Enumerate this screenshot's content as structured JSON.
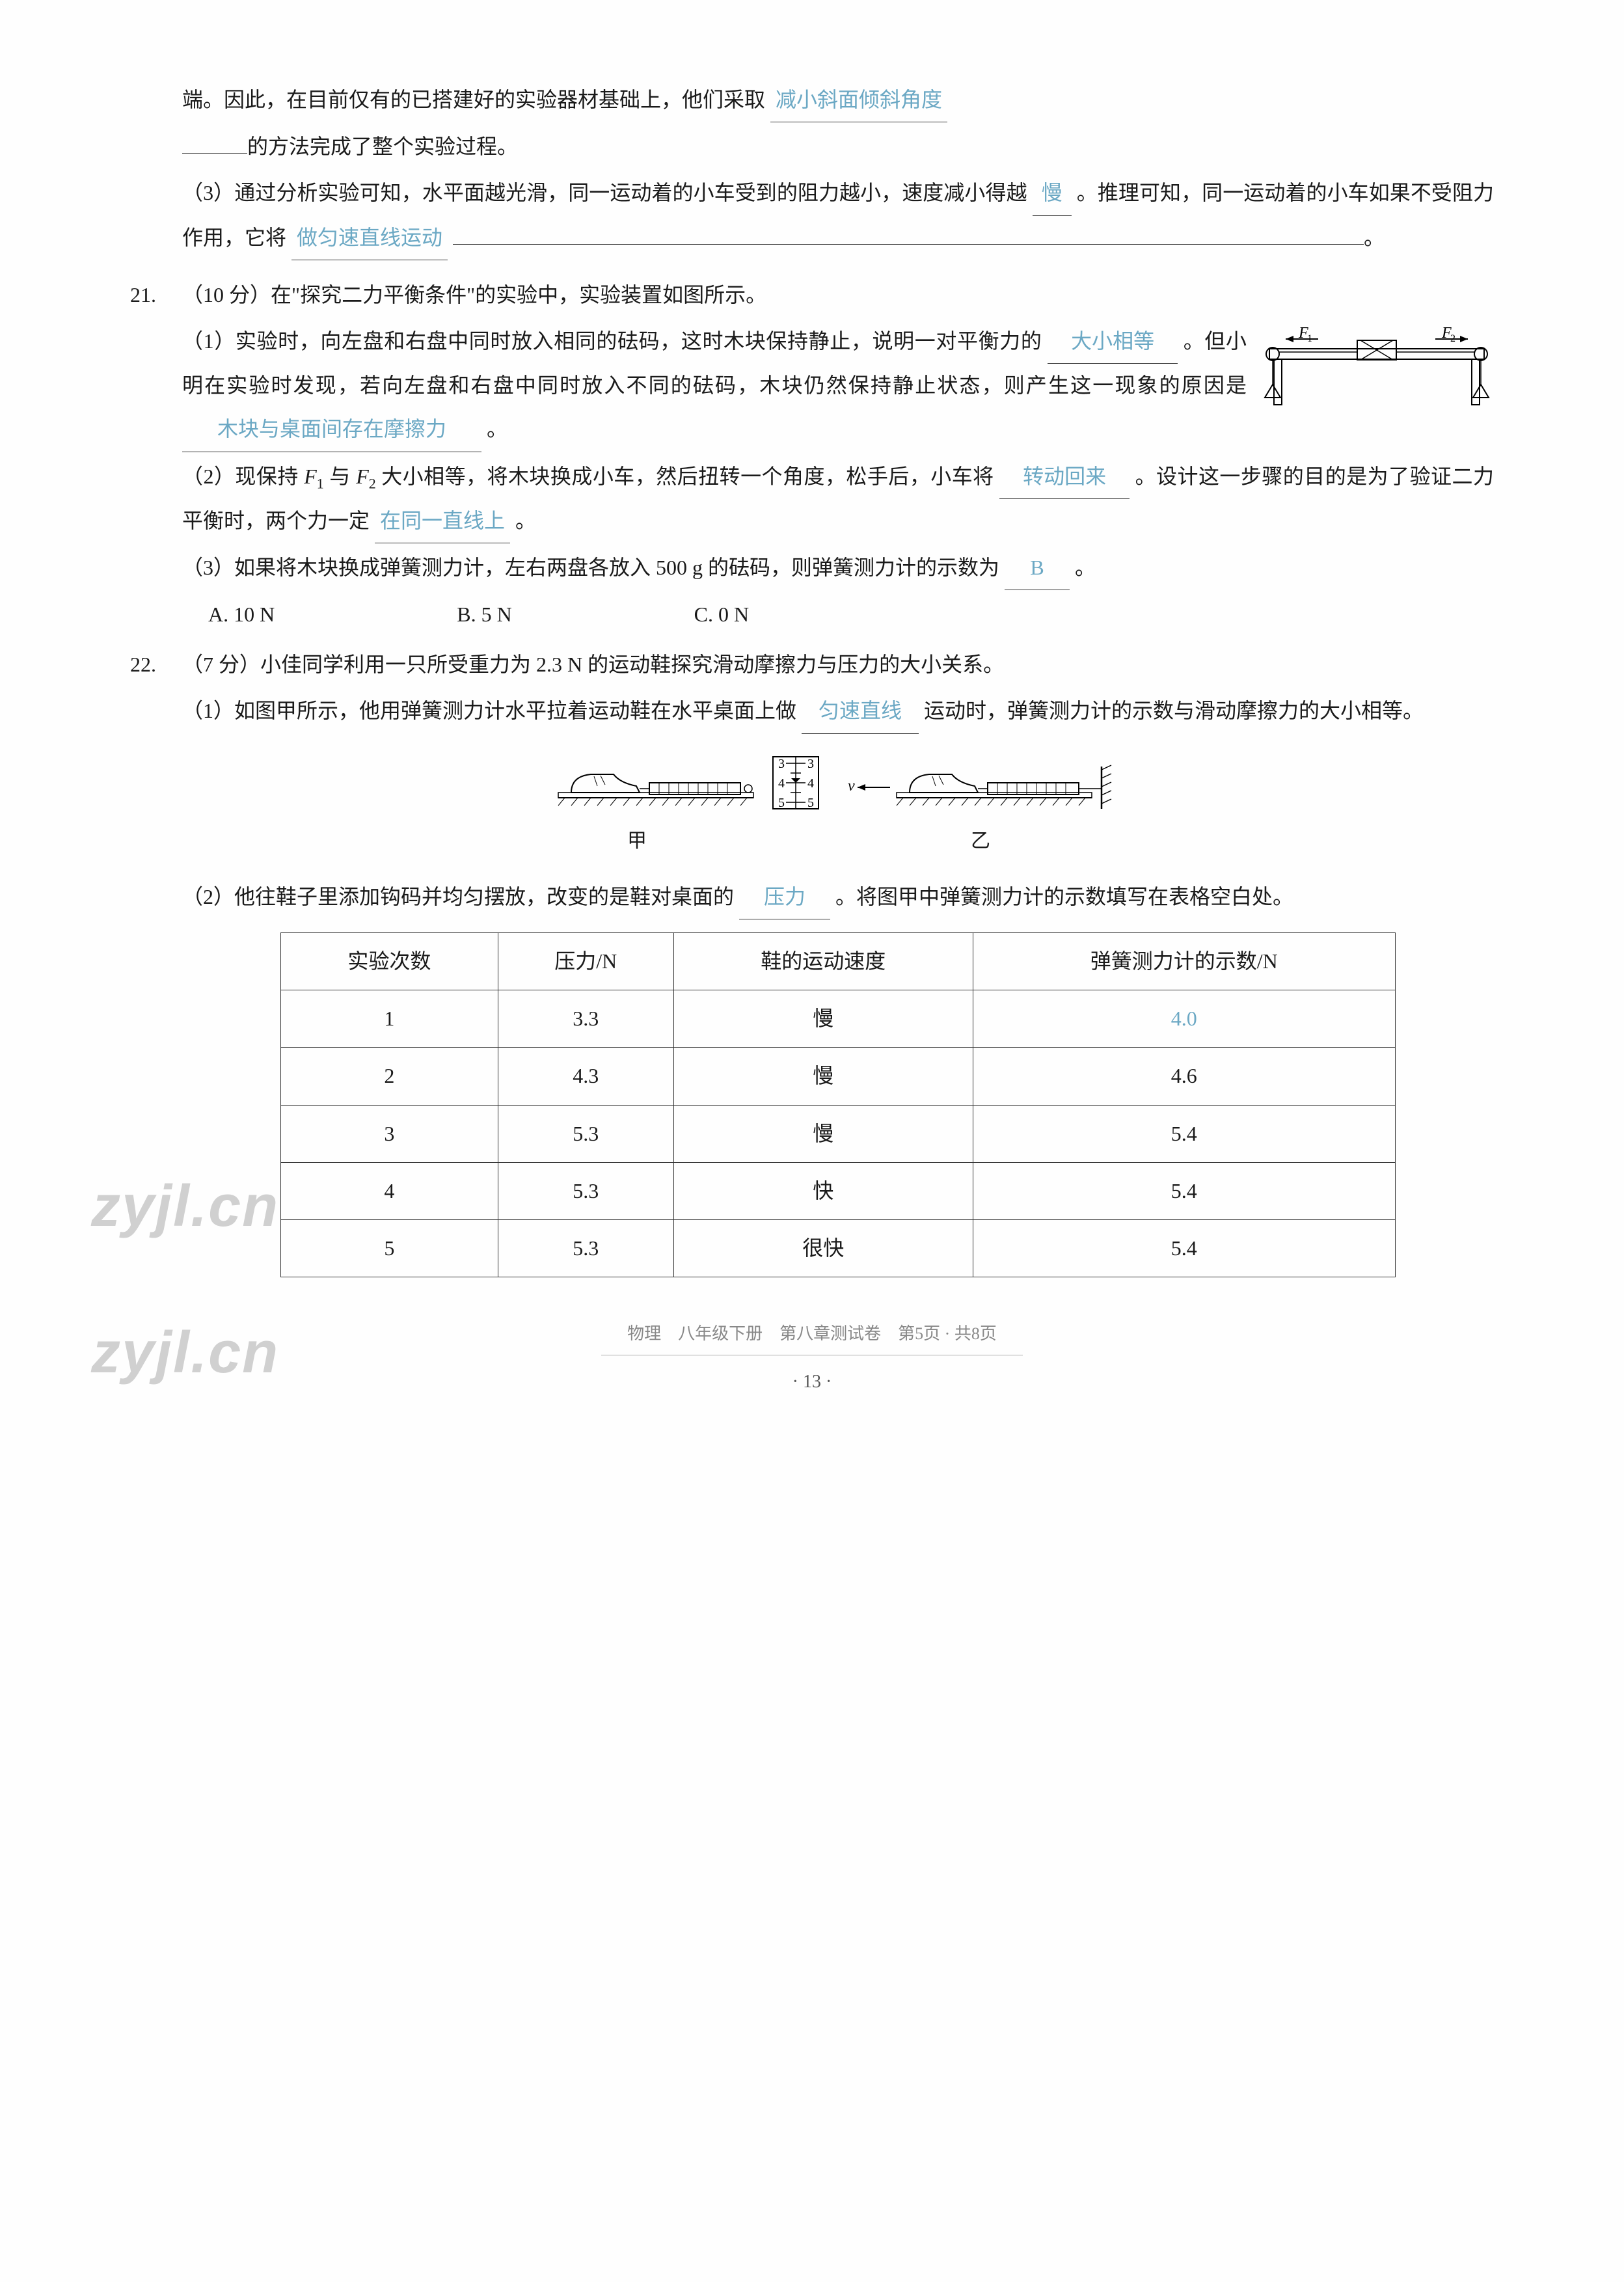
{
  "q20": {
    "part2_cont": "端。因此，在目前仅有的已搭建好的实验器材基础上，他们采取",
    "blank2_1": "减小斜面倾斜角度",
    "part2_end": "的方法完成了整个实验过程。",
    "part3_prefix": "（3）通过分析实验可知，水平面越光滑，同一运动着的小车受到的阻力越小，速度减小得越",
    "blank3_1": "慢",
    "part3_mid": "。推理可知，同一运动着的小车如果不受阻力作用，它将",
    "blank3_2": "做匀速直线运动",
    "part3_end": "。"
  },
  "q21": {
    "num": "21.",
    "score": "（10 分）",
    "stem": "在\"探究二力平衡条件\"的实验中，实验装置如图所示。",
    "f1_label": "F₁",
    "f2_label": "F₂",
    "part1_prefix": "（1）实验时，向左盘和右盘中同时放入相同的砝码，这时木块保持静止，说明一对平衡力的",
    "blank1_1": "大小相等",
    "part1_mid": "。但小明在实验时发现，若向左盘和右盘中同时放入不同的砝码，木块仍然保持静止状态，则产生这一现象的原因是",
    "blank1_2": "木块与桌面间存在摩擦力",
    "part1_end": "。",
    "part2_prefix": "（2）现保持 ",
    "f1": "F",
    "f1_sub": "1",
    "part2_with": " 与 ",
    "f2": "F",
    "f2_sub": "2",
    "part2_mid": " 大小相等，将木块换成小车，然后扭转一个角度，松手后，小车将",
    "blank2_1": "转动回来",
    "part2_mid2": "。设计这一步骤的目的是为了验证二力平衡时，两个力一定",
    "blank2_2": "在同一直线上",
    "part2_end": "。",
    "part3_prefix": "（3）如果将木块换成弹簧测力计，左右两盘各放入 500 g 的砝码，则弹簧测力计的示数为",
    "blank3_1": "B",
    "part3_end": "。",
    "optA": "A. 10 N",
    "optB": "B. 5 N",
    "optC": "C. 0 N"
  },
  "q22": {
    "num": "22.",
    "score": "（7 分）",
    "stem": "小佳同学利用一只所受重力为 2.3 N 的运动鞋探究滑动摩擦力与压力的大小关系。",
    "part1_prefix": "（1）如图甲所示，他用弹簧测力计水平拉着运动鞋在水平桌面上做",
    "blank1_1": "匀速直线",
    "part1_end": "运动时，弹簧测力计的示数与滑动摩擦力的大小相等。",
    "label_jia": "甲",
    "label_yi": "乙",
    "part2_prefix": "（2）他往鞋子里添加钩码并均匀摆放，改变的是鞋对桌面的",
    "blank2_1": "压力",
    "part2_end": "。将图甲中弹簧测力计的示数填写在表格空白处。",
    "gauge_vals": [
      "3",
      "4",
      "5",
      "3",
      "4",
      "5"
    ]
  },
  "table": {
    "headers": [
      "实验次数",
      "压力/N",
      "鞋的运动速度",
      "弹簧测力计的示数/N"
    ],
    "rows": [
      [
        "1",
        "3.3",
        "慢",
        "4.0"
      ],
      [
        "2",
        "4.3",
        "慢",
        "4.6"
      ],
      [
        "3",
        "5.3",
        "慢",
        "5.4"
      ],
      [
        "4",
        "5.3",
        "快",
        "5.4"
      ],
      [
        "5",
        "5.3",
        "很快",
        "5.4"
      ]
    ],
    "answer_row": 0,
    "answer_col": 3
  },
  "footer": {
    "text": "物理　八年级下册　第八章测试卷　第5页 · 共8页",
    "page": "· 13 ·"
  },
  "watermark": "zyjl.cn"
}
